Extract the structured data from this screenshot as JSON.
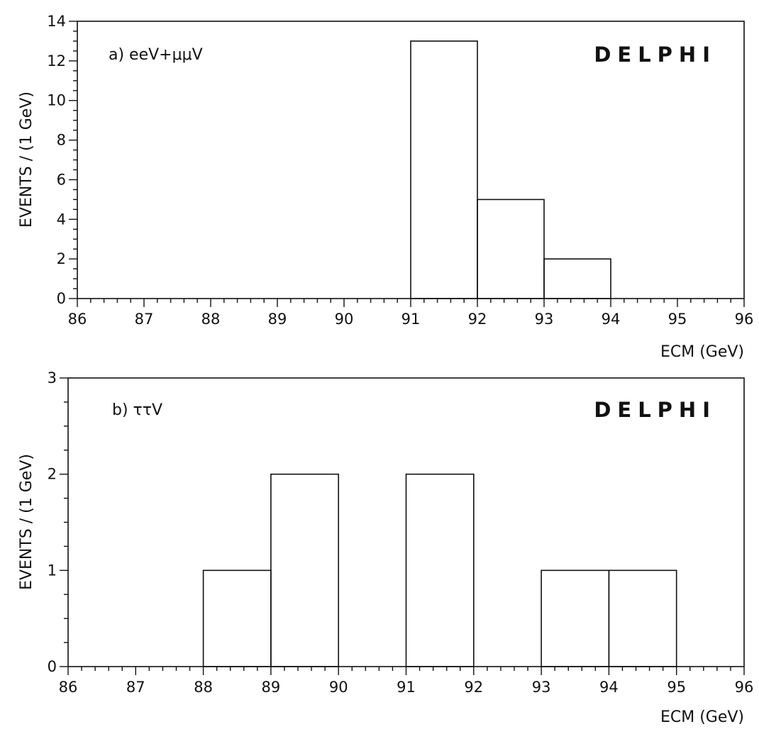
{
  "figure": {
    "panels": [
      {
        "panel_label": "a) eeV+μμV",
        "experiment": "DELPHI",
        "xlabel": "ECM (GeV)",
        "ylabel": "EVENTS / (1 GeV)",
        "xticks": [
          "86",
          "87",
          "88",
          "89",
          "90",
          "91",
          "92",
          "93",
          "94",
          "95",
          "96"
        ],
        "yticks": [
          "0",
          "2",
          "4",
          "6",
          "8",
          "10",
          "12",
          "14"
        ]
      },
      {
        "panel_label": "b) ττV",
        "experiment": "DELPHI",
        "xlabel": "ECM (GeV)",
        "ylabel": "EVENTS / (1 GeV)",
        "xticks": [
          "86",
          "87",
          "88",
          "89",
          "90",
          "91",
          "92",
          "93",
          "94",
          "95",
          "96"
        ],
        "yticks": [
          "0",
          "1",
          "2",
          "3"
        ]
      }
    ]
  },
  "chart_data": [
    {
      "type": "bar",
      "title": "",
      "xlabel": "ECM (GeV)",
      "ylabel": "EVENTS / (1 GeV)",
      "xlim": [
        86,
        96
      ],
      "ylim": [
        0,
        14
      ],
      "bin_width": 1,
      "bins": [
        {
          "x_low": 86,
          "x_high": 87,
          "value": 0
        },
        {
          "x_low": 87,
          "x_high": 88,
          "value": 0
        },
        {
          "x_low": 88,
          "x_high": 89,
          "value": 0
        },
        {
          "x_low": 89,
          "x_high": 90,
          "value": 0
        },
        {
          "x_low": 90,
          "x_high": 91,
          "value": 0
        },
        {
          "x_low": 91,
          "x_high": 92,
          "value": 13
        },
        {
          "x_low": 92,
          "x_high": 93,
          "value": 5
        },
        {
          "x_low": 93,
          "x_high": 94,
          "value": 2
        },
        {
          "x_low": 94,
          "x_high": 95,
          "value": 0
        },
        {
          "x_low": 95,
          "x_high": 96,
          "value": 0
        }
      ],
      "grid": false,
      "minor_ticks_per_major_x": 5,
      "minor_ticks_per_major_y": 4
    },
    {
      "type": "bar",
      "title": "",
      "xlabel": "ECM (GeV)",
      "ylabel": "EVENTS / (1 GeV)",
      "xlim": [
        86,
        96
      ],
      "ylim": [
        0,
        3
      ],
      "bin_width": 1,
      "bins": [
        {
          "x_low": 86,
          "x_high": 87,
          "value": 0
        },
        {
          "x_low": 87,
          "x_high": 88,
          "value": 0
        },
        {
          "x_low": 88,
          "x_high": 89,
          "value": 1
        },
        {
          "x_low": 89,
          "x_high": 90,
          "value": 2
        },
        {
          "x_low": 90,
          "x_high": 91,
          "value": 0
        },
        {
          "x_low": 91,
          "x_high": 92,
          "value": 2
        },
        {
          "x_low": 92,
          "x_high": 93,
          "value": 0
        },
        {
          "x_low": 93,
          "x_high": 94,
          "value": 1
        },
        {
          "x_low": 94,
          "x_high": 95,
          "value": 1
        },
        {
          "x_low": 95,
          "x_high": 96,
          "value": 0
        }
      ],
      "grid": false,
      "minor_ticks_per_major_x": 5,
      "minor_ticks_per_major_y": 4
    }
  ]
}
